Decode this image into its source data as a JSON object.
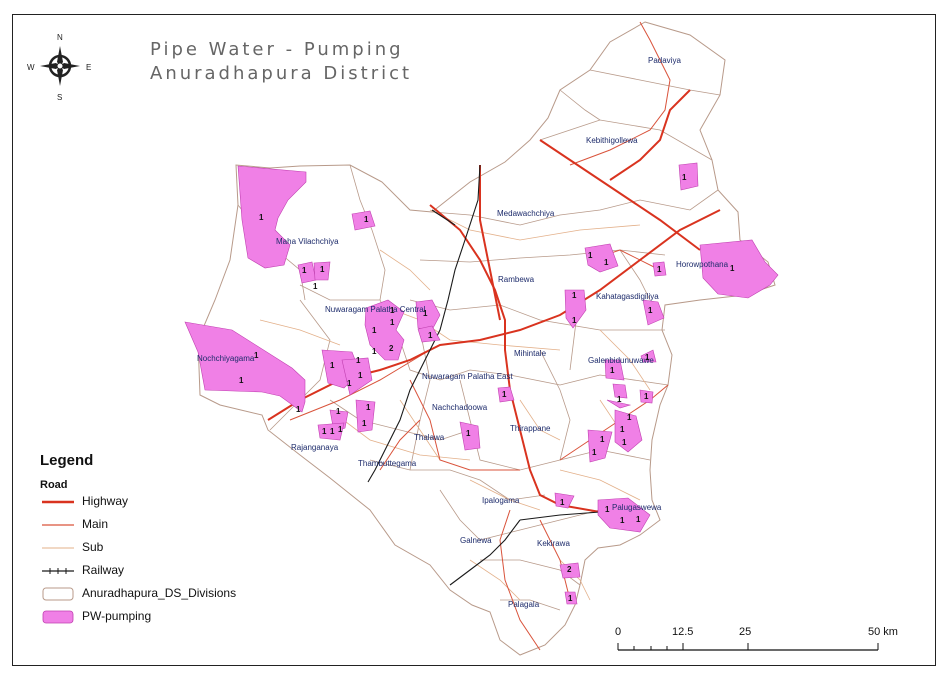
{
  "title": {
    "line1": "Pipe Water - Pumping",
    "line2": "Anuradhapura District"
  },
  "compass": {
    "n": "N",
    "s": "S",
    "e": "E",
    "w": "W"
  },
  "divisions": [
    "Padaviya",
    "Kebithigollewa",
    "Medawachchiya",
    "Horowpothana",
    "Maha Vilachchiya",
    "Rambewa",
    "Kahatagasdigiliya",
    "Nuwaragam Palatha Central",
    "Nochchiyagama",
    "Mihintale",
    "Nuwaragam Palatha East",
    "Galenbidunuwawe",
    "Nachchadoowa",
    "Thirappane",
    "Rajanganaya",
    "Thalawa",
    "Thambuttegama",
    "Ipalogama",
    "Palugaswewa",
    "Galnewa",
    "Kekirawa",
    "Palagala"
  ],
  "counts": [
    "1",
    "1",
    "1",
    "1",
    "1",
    "1",
    "1",
    "1",
    "1",
    "1",
    "1",
    "1",
    "1",
    "1",
    "2",
    "1",
    "1",
    "1",
    "1",
    "1",
    "1",
    "1",
    "1",
    "1",
    "1",
    "1",
    "1",
    "1",
    "1",
    "1",
    "1",
    "1",
    "1",
    "1",
    "1",
    "1",
    "1",
    "1",
    "1",
    "1",
    "1",
    "1",
    "1",
    "1",
    "1",
    "1",
    "1",
    "2",
    "1",
    "1"
  ],
  "legend": {
    "title": "Legend",
    "road_heading": "Road",
    "items": [
      {
        "label": "Highway"
      },
      {
        "label": "Main"
      },
      {
        "label": "Sub"
      },
      {
        "label": "Railway"
      },
      {
        "label": "Anuradhapura_DS_Divisions"
      },
      {
        "label": "PW-pumping"
      }
    ]
  },
  "scale": {
    "ticks": [
      "0",
      "12.5",
      "25",
      "50 km"
    ]
  },
  "colors": {
    "highway": "#d9331f",
    "main": "#d9533b",
    "sub": "#e3b08a",
    "railway": "#1a1a1a",
    "division_border": "#b89a8a",
    "pw_pumping": "#f080e6"
  }
}
